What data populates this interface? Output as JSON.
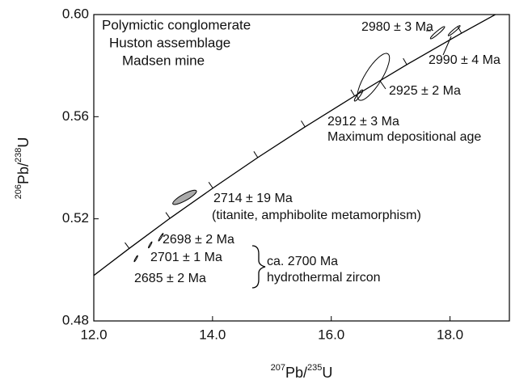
{
  "chart_data": {
    "type": "concordia",
    "title": [
      "Polymictic conglomerate",
      "Huston assemblage",
      "Madsen mine"
    ],
    "x_label": [
      "207",
      "Pb/",
      "235",
      "U"
    ],
    "y_label": [
      "206",
      "Pb/",
      "238",
      "U"
    ],
    "xlim": [
      12,
      19
    ],
    "ylim": [
      0.48,
      0.6
    ],
    "xticks": [
      {
        "value": 12,
        "label": "12.0"
      },
      {
        "value": 14,
        "label": "14.0"
      },
      {
        "value": 16,
        "label": "16.0"
      },
      {
        "value": 18,
        "label": "18.0"
      }
    ],
    "yticks": [
      0.48,
      0.52,
      0.56,
      {
        "value": 0.6,
        "label": "0.60"
      }
    ],
    "concordia": {
      "x": [
        11.943,
        12.597,
        13.283,
        14.005,
        14.762,
        15.558,
        16.393,
        17.272,
        18.193,
        19.162
      ],
      "y": [
        0.4968,
        0.5084,
        0.5202,
        0.532,
        0.544,
        0.556,
        0.5681,
        0.5804,
        0.5927,
        0.6051
      ]
    },
    "ellipses": [
      {
        "label": "2980 ± 3 Ma",
        "x": 17.79,
        "y": 0.5929,
        "x_err": 0.12,
        "y_err": 0.0024,
        "rho": 0.95,
        "color": "none"
      },
      {
        "label": "2990 ± 4 Ma",
        "x": 18.07,
        "y": 0.5937,
        "x_err": 0.1,
        "y_err": 0.002,
        "rho": 0.95,
        "color": "none"
      },
      {
        "label": "2925 ± 2 Ma",
        "x": 16.71,
        "y": 0.5756,
        "x_err": 0.27,
        "y_err": 0.0092,
        "rho": 0.8,
        "color": "none"
      },
      {
        "label": "2912 ± 3 Ma",
        "x": 16.46,
        "y": 0.5683,
        "x_err": 0.07,
        "y_err": 0.0022,
        "rho": 0.9,
        "color": "none"
      },
      {
        "label": "2714 ± 19 Ma",
        "x": 13.53,
        "y": 0.5284,
        "x_err": 0.2,
        "y_err": 0.0028,
        "rho": 0.85,
        "color": "#aaaaaa"
      },
      {
        "label": "2698 ± 2 Ma",
        "x": 13.13,
        "y": 0.5128,
        "x_err": 0.04,
        "y_err": 0.0015,
        "rho": 0.95,
        "color": "none"
      },
      {
        "label": "2701 ± 1 Ma",
        "x": 12.95,
        "y": 0.5098,
        "x_err": 0.03,
        "y_err": 0.0012,
        "rho": 0.95,
        "color": "none"
      },
      {
        "label": "2685 ± 2 Ma",
        "x": 12.71,
        "y": 0.5044,
        "x_err": 0.03,
        "y_err": 0.0012,
        "rho": 0.95,
        "color": "none"
      }
    ],
    "annotations": [
      "Maximum depositional age",
      "(titanite, amphibolite metamorphism)",
      "ca. 2700 Ma",
      "hydrothermal zircon"
    ]
  }
}
